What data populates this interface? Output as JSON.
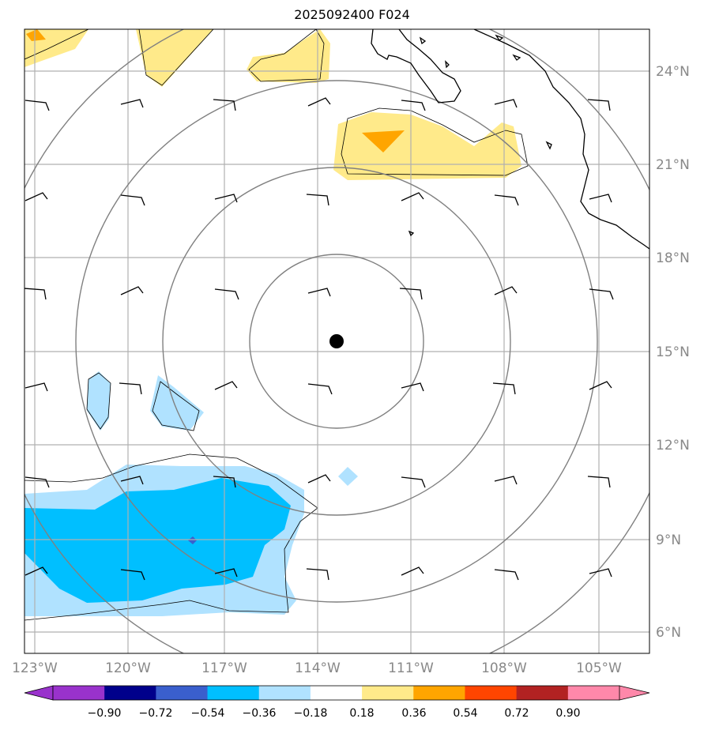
{
  "title": "2025092400 F024",
  "map": {
    "lon_range": [
      -124.0,
      -102.5
    ],
    "lat_range": [
      5.2,
      25.3
    ],
    "center": {
      "lon": -113.6,
      "lat": 15.3
    },
    "range_ring_count": 4,
    "lon_ticks": [
      {
        "value": -123,
        "label": "123°W"
      },
      {
        "value": -120,
        "label": "120°W"
      },
      {
        "value": -117,
        "label": "117°W"
      },
      {
        "value": -114,
        "label": "114°W"
      },
      {
        "value": -111,
        "label": "111°W"
      },
      {
        "value": -108,
        "label": "108°W"
      },
      {
        "value": -105,
        "label": "105°W"
      }
    ],
    "lat_ticks": [
      {
        "value": 24,
        "label": "24°N"
      },
      {
        "value": 21,
        "label": "21°N"
      },
      {
        "value": 18,
        "label": "18°N"
      },
      {
        "value": 15,
        "label": "15°N"
      },
      {
        "value": 12,
        "label": "12°N"
      },
      {
        "value": 9,
        "label": "9°N"
      },
      {
        "value": 6,
        "label": "6°N"
      }
    ],
    "grid": true,
    "wind_barbs": "regular grid of wind barbs",
    "coastline": "Baja California / Mexico in upper right"
  },
  "colorbar": {
    "levels": [
      "−0.90",
      "−0.72",
      "−0.54",
      "−0.36",
      "−0.18",
      "0.18",
      "0.36",
      "0.54",
      "0.72",
      "0.90"
    ],
    "colors": [
      "#9932cc",
      "#00008b",
      "#3a5fcd",
      "#00bfff",
      "#b0e2ff",
      "#ffffff",
      "#ffea8a",
      "#ffa500",
      "#ff4500",
      "#b22222",
      "#ff88aa"
    ],
    "extend": "both"
  }
}
